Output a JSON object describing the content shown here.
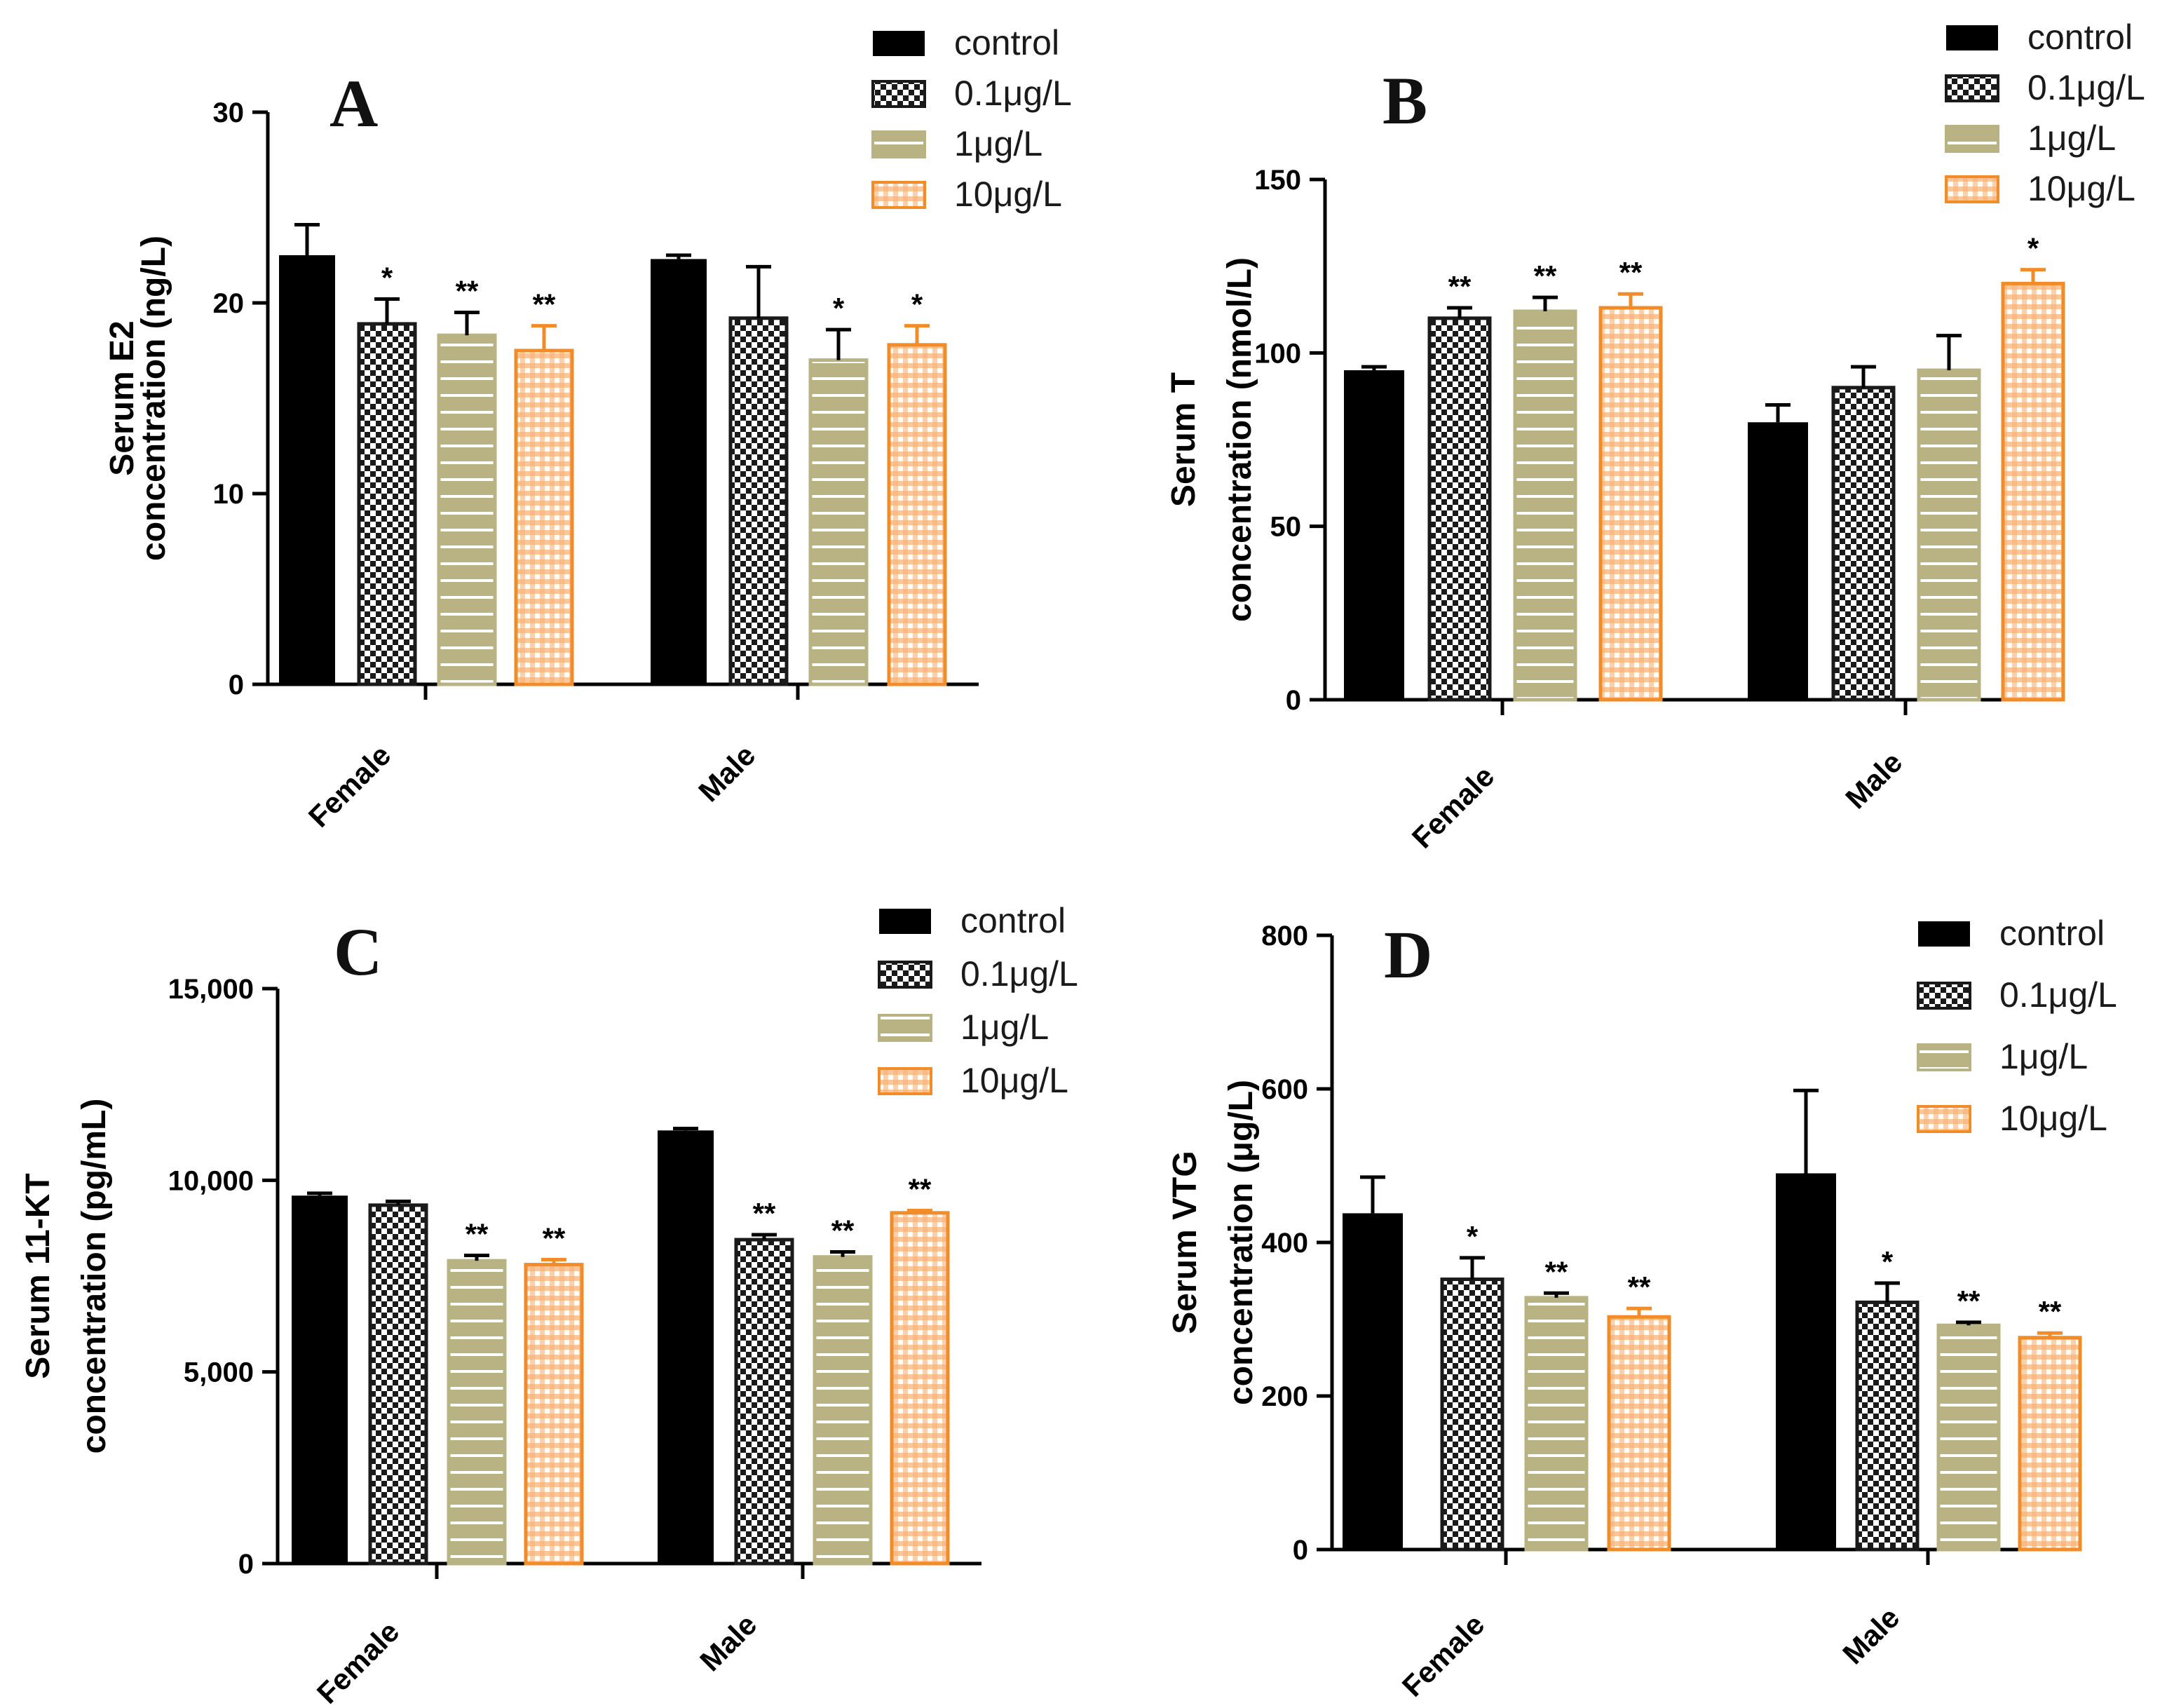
{
  "legend_colors": [
    "#000000",
    "#1a1a1a",
    "#b9b384",
    "#f28c28"
  ],
  "chart_data": [
    {
      "type": "bar",
      "panel": "A",
      "ylabel_line1": "Serum E2",
      "ylabel_line2": "concentration (ng/L)",
      "categories": [
        "Female",
        "Male"
      ],
      "ylim": [
        0,
        30
      ],
      "yticks": [
        "0",
        "10",
        "20",
        "30"
      ],
      "legend": [
        "control",
        "0.1μg/L",
        "1μg/L",
        "10μg/L"
      ],
      "series": [
        {
          "name": "control",
          "values": [
            22.5,
            22.3
          ],
          "errors": [
            1.6,
            0.2
          ],
          "stars": [
            "",
            ""
          ]
        },
        {
          "name": "0.1μg/L",
          "values": [
            18.9,
            19.2
          ],
          "errors": [
            1.3,
            2.7
          ],
          "stars": [
            "*",
            ""
          ]
        },
        {
          "name": "1μg/L",
          "values": [
            18.3,
            17.0
          ],
          "errors": [
            1.2,
            1.6
          ],
          "stars": [
            "**",
            "*"
          ]
        },
        {
          "name": "10μg/L",
          "values": [
            17.5,
            17.8
          ],
          "errors": [
            1.3,
            1.0
          ],
          "stars": [
            "**",
            "*"
          ]
        }
      ]
    },
    {
      "type": "bar",
      "panel": "B",
      "ylabel_line1": "Serum T",
      "ylabel_line2": "concentration (nmol/L)",
      "categories": [
        "Female",
        "Male"
      ],
      "ylim": [
        0,
        150
      ],
      "yticks": [
        "0",
        "50",
        "100",
        "150"
      ],
      "legend": [
        "control",
        "0.1μg/L",
        "1μg/L",
        "10μg/L"
      ],
      "series": [
        {
          "name": "control",
          "values": [
            95,
            80
          ],
          "errors": [
            1,
            5
          ],
          "stars": [
            "",
            ""
          ]
        },
        {
          "name": "0.1μg/L",
          "values": [
            110,
            90
          ],
          "errors": [
            3,
            6
          ],
          "stars": [
            "**",
            ""
          ]
        },
        {
          "name": "1μg/L",
          "values": [
            112,
            95
          ],
          "errors": [
            4,
            10
          ],
          "stars": [
            "**",
            ""
          ]
        },
        {
          "name": "10μg/L",
          "values": [
            113,
            120
          ],
          "errors": [
            4,
            4
          ],
          "stars": [
            "**",
            "*"
          ]
        }
      ]
    },
    {
      "type": "bar",
      "panel": "C",
      "ylabel_line1": "Serum 11-KT",
      "ylabel_line2": "concentration (pg/mL)",
      "categories": [
        "Female",
        "Male"
      ],
      "ylim": [
        0,
        15000
      ],
      "yticks": [
        "0",
        "5,000",
        "10,000",
        "15,000"
      ],
      "legend": [
        "control",
        "0.1μg/L",
        "1μg/L",
        "10μg/L"
      ],
      "series": [
        {
          "name": "control",
          "values": [
            9600,
            11300
          ],
          "errors": [
            60,
            50
          ],
          "stars": [
            "",
            ""
          ]
        },
        {
          "name": "0.1μg/L",
          "values": [
            9350,
            8450
          ],
          "errors": [
            100,
            130
          ],
          "stars": [
            "",
            "**"
          ]
        },
        {
          "name": "1μg/L",
          "values": [
            7900,
            8000
          ],
          "errors": [
            140,
            130
          ],
          "stars": [
            "**",
            "**"
          ]
        },
        {
          "name": "10μg/L",
          "values": [
            7800,
            9150
          ],
          "errors": [
            130,
            60
          ],
          "stars": [
            "**",
            "**"
          ]
        }
      ]
    },
    {
      "type": "bar",
      "panel": "D",
      "ylabel_line1": "Serum VTG",
      "ylabel_line2": "concentration (μg/L)",
      "categories": [
        "Female",
        "Male"
      ],
      "ylim": [
        0,
        800
      ],
      "yticks": [
        "0",
        "200",
        "400",
        "600",
        "800"
      ],
      "legend": [
        "control",
        "0.1μg/L",
        "1μg/L",
        "10μg/L"
      ],
      "series": [
        {
          "name": "control",
          "values": [
            438,
            490
          ],
          "errors": [
            47,
            108
          ],
          "stars": [
            "",
            ""
          ]
        },
        {
          "name": "0.1μg/L",
          "values": [
            352,
            322
          ],
          "errors": [
            28,
            25
          ],
          "stars": [
            "*",
            "*"
          ]
        },
        {
          "name": "1μg/L",
          "values": [
            328,
            292
          ],
          "errors": [
            6,
            4
          ],
          "stars": [
            "**",
            "**"
          ]
        },
        {
          "name": "10μg/L",
          "values": [
            303,
            276
          ],
          "errors": [
            11,
            6
          ],
          "stars": [
            "**",
            "**"
          ]
        }
      ]
    }
  ]
}
